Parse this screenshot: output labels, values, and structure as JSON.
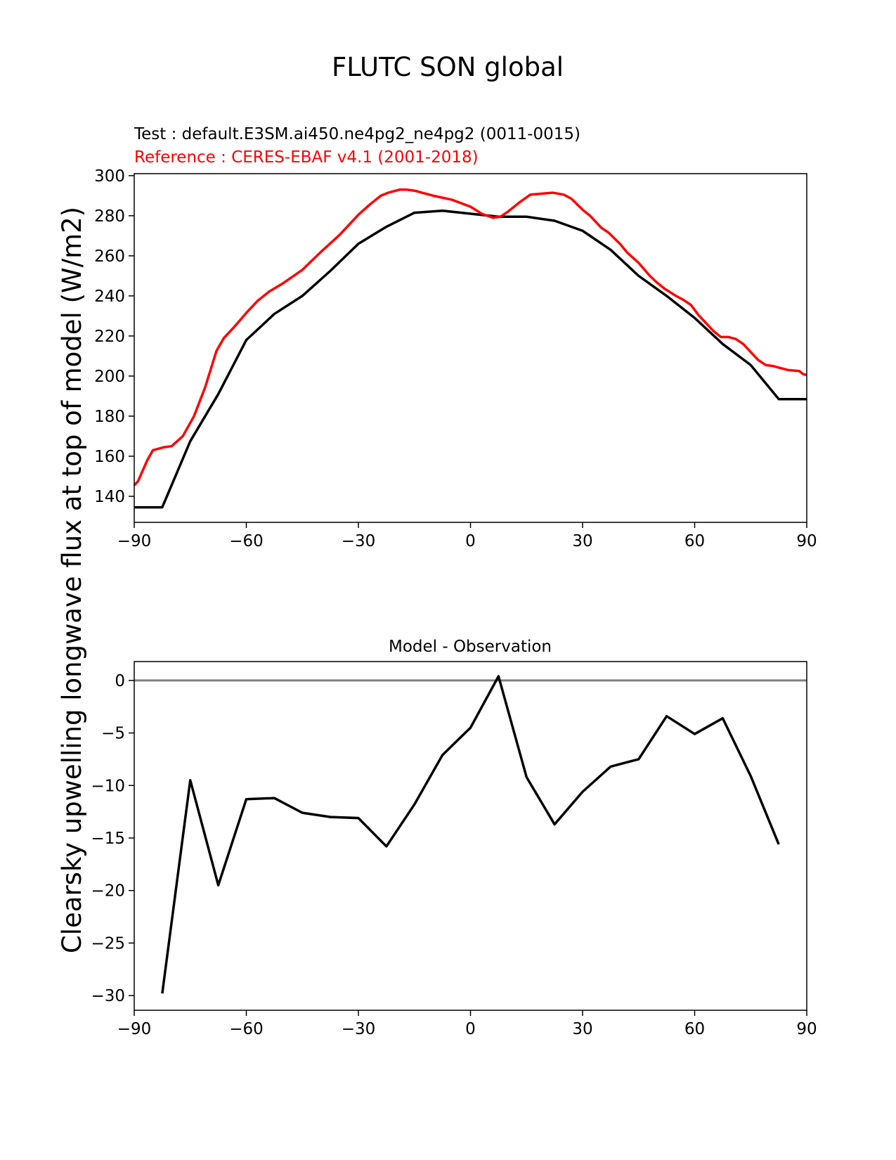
{
  "figure": {
    "title": "FLUTC SON global",
    "ylabel": "Clearsky upwelling longwave flux at top of model (W/m2)"
  },
  "chart_data": [
    {
      "type": "line",
      "title": "",
      "subtitle_test": "Test : default.E3SM.ai450.ne4pg2_ne4pg2 (0011-0015)",
      "subtitle_reference": "Reference : CERES-EBAF v4.1 (2001-2018)",
      "xlabel": "",
      "ylabel": "Clearsky upwelling longwave flux at top of model (W/m2)",
      "xlim": [
        -90,
        90
      ],
      "ylim": [
        127,
        301
      ],
      "x_ticks": [
        -90,
        -60,
        -30,
        0,
        30,
        60,
        90
      ],
      "x_tick_labels": [
        "−90",
        "−60",
        "−30",
        "0",
        "30",
        "60",
        "90"
      ],
      "y_ticks": [
        140,
        160,
        180,
        200,
        220,
        240,
        260,
        280,
        300
      ],
      "y_tick_labels": [
        "140",
        "160",
        "180",
        "200",
        "220",
        "240",
        "260",
        "280",
        "300"
      ],
      "grid": false,
      "series": [
        {
          "color": "#000000",
          "x": [
            -90,
            -82.5,
            -75,
            -67.5,
            -60,
            -52.5,
            -45,
            -37.5,
            -30,
            -22.5,
            -15,
            -7.5,
            0,
            7.5,
            15,
            22.5,
            30,
            37.5,
            45,
            52.5,
            60,
            67.5,
            75,
            82.5,
            90
          ],
          "y": [
            134.5,
            134.5,
            167.5,
            191,
            218,
            231,
            240,
            252.5,
            266,
            274.5,
            281.5,
            282.5,
            281,
            279.5,
            279.5,
            277.5,
            272.5,
            263,
            250,
            240,
            229,
            216,
            205.5,
            188.5,
            188.5
          ]
        },
        {
          "color": "#ff0000",
          "x": [
            -90,
            -89,
            -86.5,
            -85,
            -82,
            -80,
            -77,
            -74,
            -71,
            -68,
            -66,
            -63,
            -60,
            -57,
            -54,
            -50,
            -45,
            -40,
            -35,
            -30,
            -27,
            -24,
            -22,
            -19,
            -17,
            -15,
            -10,
            -5,
            0,
            3,
            6,
            8,
            10,
            13,
            16,
            19,
            22,
            25,
            27,
            30,
            32,
            35,
            37,
            40,
            42,
            45,
            48,
            50,
            52,
            55,
            57,
            59,
            61,
            63,
            65,
            67,
            69,
            71,
            73,
            75,
            77,
            79,
            81,
            83,
            85,
            88,
            89,
            90
          ],
          "y": [
            145.5,
            147.5,
            158,
            163,
            164.5,
            165,
            170,
            180,
            194.5,
            212.5,
            219,
            225,
            231.5,
            237.5,
            242,
            246.5,
            253,
            262,
            270.5,
            280.5,
            285.5,
            290,
            291.5,
            293,
            293,
            292.5,
            290,
            288,
            284.5,
            281,
            279,
            279.5,
            282,
            286.5,
            290.5,
            291,
            291.5,
            290.5,
            288.5,
            283,
            280,
            274,
            271.5,
            266,
            261.5,
            256.5,
            250,
            246.5,
            243.5,
            240,
            238,
            235.5,
            230.5,
            226.5,
            222.5,
            219.5,
            219.5,
            218.5,
            216,
            212,
            208,
            205.5,
            205,
            204,
            203,
            202.5,
            201,
            200.5
          ]
        }
      ]
    },
    {
      "type": "line",
      "title": "Model - Observation",
      "xlabel": "",
      "ylabel": "",
      "xlim": [
        -90,
        90
      ],
      "ylim": [
        -31.4,
        1.8
      ],
      "x_ticks": [
        -90,
        -60,
        -30,
        0,
        30,
        60,
        90
      ],
      "x_tick_labels": [
        "−90",
        "−60",
        "−30",
        "0",
        "30",
        "60",
        "90"
      ],
      "y_ticks": [
        -30,
        -25,
        -20,
        -15,
        -10,
        -5,
        0
      ],
      "y_tick_labels": [
        "−30",
        "−25",
        "−20",
        "−15",
        "−10",
        "−5",
        "0"
      ],
      "zero_line_color": "#808080",
      "grid": false,
      "series": [
        {
          "color": "#000000",
          "x": [
            -82.5,
            -75,
            -67.5,
            -60,
            -52.5,
            -45,
            -37.5,
            -30,
            -22.5,
            -15,
            -7.5,
            0,
            7.5,
            15,
            22.5,
            30,
            37.5,
            45,
            52.5,
            60,
            67.5,
            75,
            82.5
          ],
          "y": [
            -29.8,
            -9.5,
            -19.5,
            -11.3,
            -11.2,
            -12.6,
            -13,
            -13.1,
            -15.8,
            -11.8,
            -7.1,
            -4.5,
            0.4,
            -9.2,
            -13.7,
            -10.6,
            -8.2,
            -7.5,
            -3.4,
            -5.1,
            -3.6,
            -9.1,
            -15.6
          ]
        }
      ]
    }
  ]
}
